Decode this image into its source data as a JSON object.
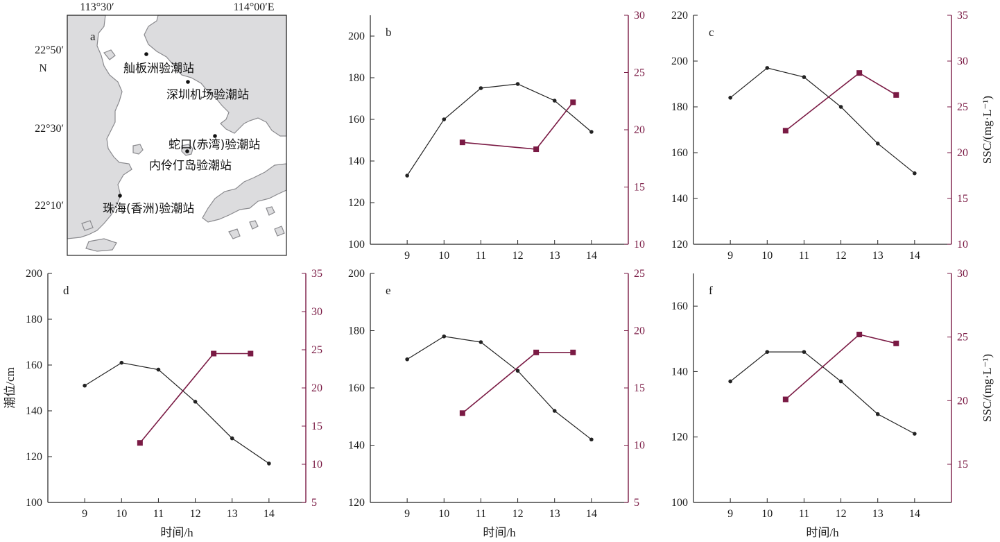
{
  "colors": {
    "tide": "#222222",
    "ssc": "#7a1a44",
    "land": "#dcdcde",
    "land_edge": "#8a8a8e",
    "water": "#ffffff"
  },
  "map": {
    "letter": "a",
    "lon_labels": [
      "113°30′",
      "114°00′E"
    ],
    "lat_labels": [
      "22°50′",
      "22°30′",
      "22°10′"
    ],
    "north": "N",
    "stations": [
      {
        "name": "舢板洲验潮站"
      },
      {
        "name": "深圳机场验潮站"
      },
      {
        "name": "蛇口(赤湾)验潮站"
      },
      {
        "name": "内伶仃岛验潮站"
      },
      {
        "name": "珠海(香洲)验潮站"
      }
    ]
  },
  "axis_titles": {
    "tide": "潮位/cm",
    "ssc": "SSC/(mg·L⁻¹)",
    "time": "时间/h"
  },
  "chart_data": [
    {
      "type": "line",
      "letter": "b",
      "x_ticks": [
        9,
        10,
        11,
        12,
        13,
        14
      ],
      "xlim": [
        8,
        15
      ],
      "ylim": [
        100,
        210
      ],
      "y_ticks": [
        100,
        120,
        140,
        160,
        180,
        200
      ],
      "y2lim": [
        10,
        30
      ],
      "y2_ticks": [
        10,
        15,
        20,
        25,
        30
      ],
      "series": [
        {
          "axis": "left",
          "x": [
            9,
            10,
            11,
            12,
            13,
            14
          ],
          "y": [
            133,
            160,
            175,
            177,
            169,
            154
          ]
        },
        {
          "axis": "right",
          "x": [
            10.5,
            12.5,
            13.5
          ],
          "y": [
            18.9,
            18.3,
            22.4
          ]
        }
      ]
    },
    {
      "type": "line",
      "letter": "c",
      "x_ticks": [
        9,
        10,
        11,
        12,
        13,
        14
      ],
      "xlim": [
        8,
        15
      ],
      "ylim": [
        120,
        220
      ],
      "y_ticks": [
        120,
        140,
        160,
        180,
        200,
        220
      ],
      "y2lim": [
        10,
        35
      ],
      "y2_ticks": [
        10,
        15,
        20,
        25,
        30,
        35
      ],
      "series": [
        {
          "axis": "left",
          "x": [
            9,
            10,
            11,
            12,
            13,
            14
          ],
          "y": [
            184,
            197,
            193,
            180,
            164,
            151
          ]
        },
        {
          "axis": "right",
          "x": [
            10.5,
            12.5,
            13.5
          ],
          "y": [
            22.4,
            28.7,
            26.3
          ]
        }
      ]
    },
    {
      "type": "line",
      "letter": "d",
      "x_ticks": [
        9,
        10,
        11,
        12,
        13,
        14
      ],
      "xlim": [
        8,
        15
      ],
      "ylim": [
        100,
        200
      ],
      "y_ticks": [
        100,
        120,
        140,
        160,
        180,
        200
      ],
      "y2lim": [
        5,
        35
      ],
      "y2_ticks": [
        5,
        10,
        15,
        20,
        25,
        30,
        35
      ],
      "series": [
        {
          "axis": "left",
          "x": [
            9,
            10,
            11,
            12,
            13,
            14
          ],
          "y": [
            151,
            161,
            158,
            144,
            128,
            117
          ]
        },
        {
          "axis": "right",
          "x": [
            10.5,
            12.5,
            13.5
          ],
          "y": [
            12.8,
            24.5,
            24.5
          ]
        }
      ]
    },
    {
      "type": "line",
      "letter": "e",
      "x_ticks": [
        9,
        10,
        11,
        12,
        13,
        14
      ],
      "xlim": [
        8,
        15
      ],
      "ylim": [
        120,
        200
      ],
      "y_ticks": [
        120,
        140,
        160,
        180,
        200
      ],
      "y2lim": [
        5,
        25
      ],
      "y2_ticks": [
        5,
        10,
        15,
        20,
        25
      ],
      "series": [
        {
          "axis": "left",
          "x": [
            9,
            10,
            11,
            12,
            13,
            14
          ],
          "y": [
            170,
            178,
            176,
            166,
            152,
            142
          ]
        },
        {
          "axis": "right",
          "x": [
            10.5,
            12.5,
            13.5
          ],
          "y": [
            12.8,
            18.1,
            18.1
          ]
        }
      ]
    },
    {
      "type": "line",
      "letter": "f",
      "x_ticks": [
        9,
        10,
        11,
        12,
        13,
        14
      ],
      "xlim": [
        8,
        15
      ],
      "ylim": [
        100,
        170
      ],
      "y_ticks": [
        100,
        120,
        140,
        160
      ],
      "y2lim": [
        12,
        30
      ],
      "y2_ticks": [
        15,
        20,
        25,
        30
      ],
      "series": [
        {
          "axis": "left",
          "x": [
            9,
            10,
            11,
            12,
            13,
            14
          ],
          "y": [
            137,
            146,
            146,
            137,
            127,
            121
          ]
        },
        {
          "axis": "right",
          "x": [
            10.5,
            12.5,
            13.5
          ],
          "y": [
            20.1,
            25.2,
            24.5
          ]
        }
      ]
    }
  ]
}
